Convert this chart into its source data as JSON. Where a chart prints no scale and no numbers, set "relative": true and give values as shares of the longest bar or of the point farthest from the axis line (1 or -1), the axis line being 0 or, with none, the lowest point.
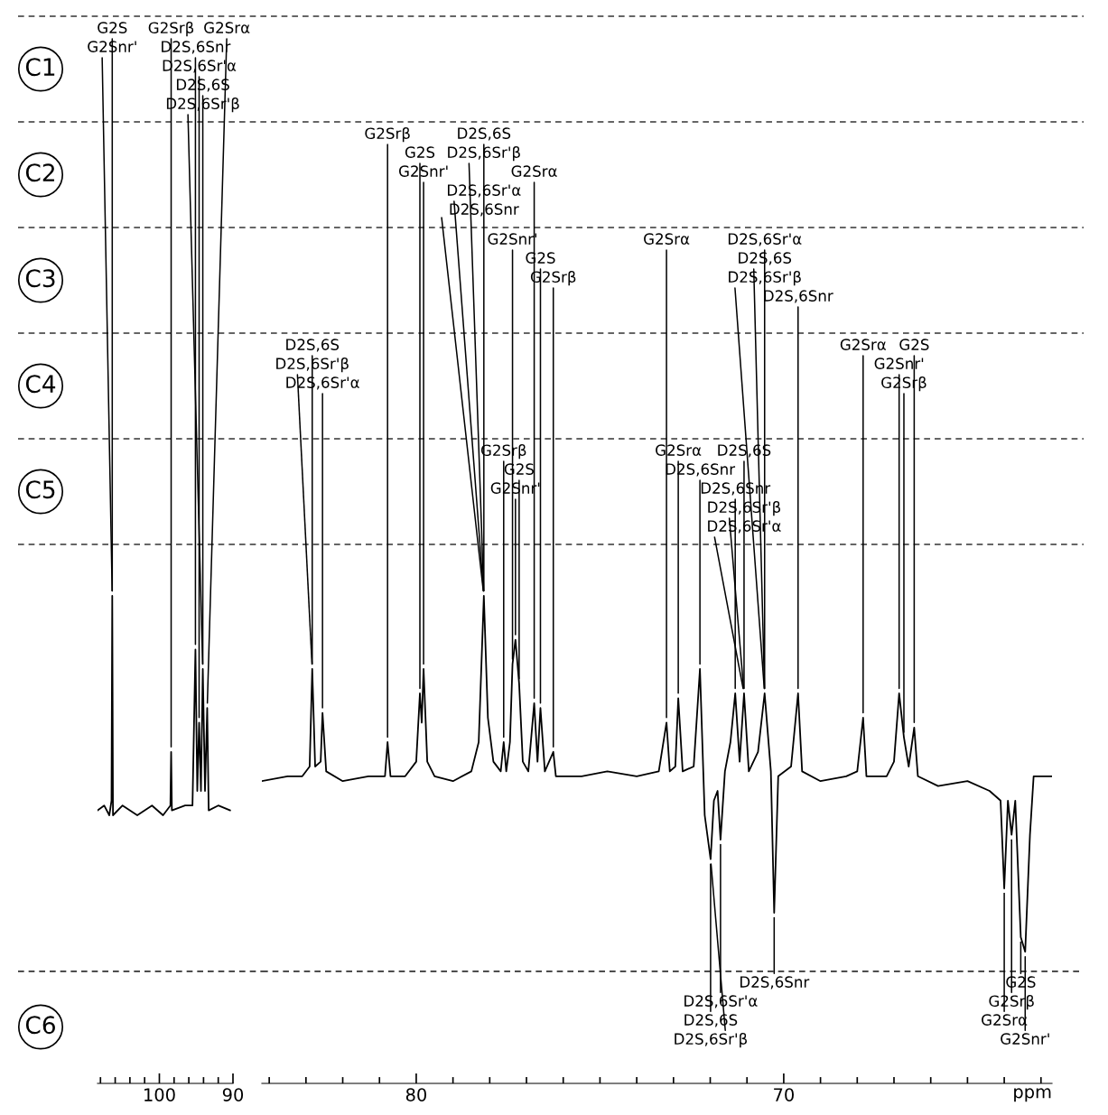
{
  "chart_data": [
    {
      "type": "line",
      "relative": true,
      "color": "#000000",
      "x": [
        108.4,
        107.5,
        106.8,
        106.5,
        106.4,
        106.3,
        105.0,
        103.0,
        101.0,
        99.5,
        98.5,
        98.4,
        98.3,
        96.5,
        95.5,
        95.1,
        94.85,
        94.6,
        94.35,
        94.1,
        93.8,
        93.5,
        93.3,
        92.0,
        90.4
      ],
      "values": [
        0.56,
        0.57,
        0.55,
        0.58,
        1.0,
        0.55,
        0.57,
        0.55,
        0.57,
        0.55,
        0.57,
        0.68,
        0.56,
        0.57,
        0.57,
        0.89,
        0.6,
        0.74,
        0.6,
        0.85,
        0.6,
        0.77,
        0.56,
        0.57,
        0.56
      ],
      "xlim": [
        108.4,
        90
      ],
      "ref_lines": [
        {
          "axis": "y",
          "value": 0.23,
          "line_style": "dashed",
          "color": "#333333"
        }
      ],
      "xticks": [
        {
          "value": 108,
          "label": null
        },
        {
          "value": 106,
          "label": null
        },
        {
          "value": 104,
          "label": null
        },
        {
          "value": 102,
          "label": null
        },
        100,
        {
          "value": 98,
          "label": null
        },
        {
          "value": 96,
          "label": null
        },
        {
          "value": 94,
          "label": null
        },
        {
          "value": 92,
          "label": null
        },
        90
      ],
      "annotations": [
        "C1",
        {
          "text": "G2S",
          "x": 106.4,
          "y": 1.0
        },
        {
          "text": "G2Snr'",
          "x": 106.4,
          "y": 1.0
        },
        {
          "text": "G2Srβ",
          "x": 98.4,
          "y": 0.68
        },
        {
          "text": "D2S,6Snr",
          "x": 95.1,
          "y": 0.89
        },
        {
          "text": "D2S,6Sr'α",
          "x": 94.6,
          "y": 0.74
        },
        {
          "text": "D2S,6S",
          "x": 94.1,
          "y": 0.85
        },
        {
          "text": "D2S,6Sr'β",
          "x": 94.1,
          "y": 0.85
        },
        {
          "text": "G2Srα",
          "x": 93.5,
          "y": 0.77
        }
      ]
    },
    {
      "type": "line",
      "relative": true,
      "color": "#000000",
      "xlabel": "ppm",
      "x": [
        84.2,
        83.5,
        83.1,
        82.9,
        82.83,
        82.75,
        82.6,
        82.55,
        82.45,
        82.0,
        81.3,
        80.85,
        80.78,
        80.7,
        80.3,
        80.0,
        79.9,
        79.85,
        79.8,
        79.7,
        79.5,
        79.0,
        78.5,
        78.3,
        78.16,
        78.05,
        77.9,
        77.7,
        77.62,
        77.55,
        77.45,
        77.38,
        77.3,
        77.2,
        77.1,
        76.95,
        76.79,
        76.7,
        76.62,
        76.5,
        76.27,
        76.2,
        75.5,
        74.8,
        74.0,
        73.4,
        73.19,
        73.1,
        72.95,
        72.87,
        72.75,
        72.45,
        72.28,
        72.15,
        71.99,
        71.9,
        71.8,
        71.72,
        71.6,
        71.45,
        71.32,
        71.2,
        71.08,
        70.95,
        70.7,
        70.52,
        70.35,
        70.26,
        70.15,
        69.8,
        69.61,
        69.5,
        69.0,
        68.3,
        68.0,
        67.84,
        67.75,
        67.2,
        67.0,
        66.86,
        66.73,
        66.6,
        66.45,
        66.35,
        65.8,
        65.0,
        64.4,
        64.1,
        64.0,
        63.9,
        63.8,
        63.7,
        63.55,
        63.43,
        63.3,
        63.2,
        62.9,
        62.72
      ],
      "values": [
        0.62,
        0.63,
        0.63,
        0.65,
        0.85,
        0.65,
        0.66,
        0.76,
        0.64,
        0.62,
        0.63,
        0.63,
        0.7,
        0.63,
        0.63,
        0.66,
        0.8,
        0.74,
        0.85,
        0.66,
        0.63,
        0.62,
        0.64,
        0.7,
        1.0,
        0.75,
        0.66,
        0.64,
        0.7,
        0.64,
        0.7,
        0.86,
        0.91,
        0.82,
        0.66,
        0.64,
        0.78,
        0.66,
        0.77,
        0.64,
        0.68,
        0.63,
        0.63,
        0.64,
        0.63,
        0.64,
        0.74,
        0.64,
        0.65,
        0.79,
        0.64,
        0.65,
        0.85,
        0.55,
        0.46,
        0.58,
        0.6,
        0.5,
        0.64,
        0.7,
        0.8,
        0.66,
        0.8,
        0.64,
        0.68,
        0.8,
        0.64,
        0.35,
        0.63,
        0.65,
        0.8,
        0.64,
        0.62,
        0.63,
        0.64,
        0.75,
        0.63,
        0.63,
        0.66,
        0.8,
        0.71,
        0.65,
        0.73,
        0.63,
        0.61,
        0.62,
        0.6,
        0.58,
        0.4,
        0.58,
        0.51,
        0.58,
        0.3,
        0.27,
        0.51,
        0.63,
        0.63,
        0.63
      ],
      "xlim": [
        84.2,
        62.7
      ],
      "ref_lines": [
        {
          "axis": "y",
          "value": 0.23,
          "line_style": "dashed",
          "color": "#333333"
        }
      ],
      "xticks": [
        {
          "value": 84,
          "label": null
        },
        {
          "value": 83,
          "label": null
        },
        {
          "value": 82,
          "label": null
        },
        {
          "value": 81,
          "label": null
        },
        80,
        {
          "value": 79,
          "label": null
        },
        {
          "value": 78,
          "label": null
        },
        {
          "value": 77,
          "label": null
        },
        {
          "value": 76,
          "label": null
        },
        {
          "value": 75,
          "label": null
        },
        {
          "value": 74,
          "label": null
        },
        {
          "value": 73,
          "label": null
        },
        {
          "value": 72,
          "label": null
        },
        {
          "value": 71,
          "label": null
        },
        70,
        {
          "value": 69,
          "label": null
        },
        {
          "value": 68,
          "label": null
        },
        {
          "value": 67,
          "label": null
        },
        {
          "value": 66,
          "label": null
        },
        {
          "value": 65,
          "label": null
        },
        {
          "value": 64,
          "label": null
        },
        {
          "value": 63,
          "label": null
        }
      ],
      "annotations": [
        "C2",
        {
          "text": "G2Srβ",
          "x": 80.78,
          "y": 0.7
        },
        {
          "text": "G2S",
          "x": 79.9,
          "y": 0.8
        },
        {
          "text": "G2Snr'",
          "x": 79.8,
          "y": 0.85
        },
        {
          "text": "D2S,6S",
          "x": 78.16,
          "y": 1.0
        },
        {
          "text": "D2S,6Sr'β",
          "x": 78.16,
          "y": 1.0
        },
        {
          "text": "D2S,6Sr'α",
          "x": 78.16,
          "y": 1.0
        },
        {
          "text": "D2S,6Snr",
          "x": 78.16,
          "y": 1.0
        },
        {
          "text": "G2Srα",
          "x": 76.79,
          "y": 0.78
        },
        "C3",
        {
          "text": "G2Snr'",
          "x": 77.38,
          "y": 0.86
        },
        {
          "text": "G2S",
          "x": 76.62,
          "y": 0.77
        },
        {
          "text": "G2Srβ",
          "x": 76.27,
          "y": 0.68
        },
        {
          "text": "G2Srα",
          "x": 73.19,
          "y": 0.74
        },
        {
          "text": "D2S,6Sr'α",
          "x": 70.52,
          "y": 0.8
        },
        {
          "text": "D2S,6S",
          "x": 70.52,
          "y": 0.8
        },
        {
          "text": "D2S,6Sr'β",
          "x": 70.52,
          "y": 0.8
        },
        {
          "text": "D2S,6Snr",
          "x": 69.61,
          "y": 0.8
        },
        "C4",
        {
          "text": "D2S,6S",
          "x": 82.83,
          "y": 0.85
        },
        {
          "text": "D2S,6Sr'β",
          "x": 82.83,
          "y": 0.85
        },
        {
          "text": "D2S,6Sr'α",
          "x": 82.55,
          "y": 0.76
        },
        {
          "text": "G2Srα",
          "x": 67.84,
          "y": 0.75
        },
        {
          "text": "G2Snr'",
          "x": 66.86,
          "y": 0.8
        },
        {
          "text": "G2Srβ",
          "x": 66.73,
          "y": 0.71
        },
        {
          "text": "G2S",
          "x": 66.45,
          "y": 0.73
        },
        "C5",
        {
          "text": "G2Srβ",
          "x": 77.62,
          "y": 0.7
        },
        {
          "text": "G2S",
          "x": 77.2,
          "y": 0.82
        },
        {
          "text": "G2Snr'",
          "x": 77.3,
          "y": 0.91
        },
        {
          "text": "G2Srα",
          "x": 72.87,
          "y": 0.79
        },
        {
          "text": "D2S,6Snr",
          "x": 72.28,
          "y": 0.85
        },
        {
          "text": "D2S,6Snr",
          "x": 71.32,
          "y": 0.8
        },
        {
          "text": "D2S,6S",
          "x": 71.08,
          "y": 0.8
        },
        {
          "text": "D2S,6Sr'β",
          "x": 71.08,
          "y": 0.8
        },
        {
          "text": "D2S,6Sr'α",
          "x": 71.08,
          "y": 0.8
        },
        "C6",
        {
          "text": "D2S,6Snr",
          "x": 70.26,
          "y": 0.35
        },
        {
          "text": "D2S,6Sr'α",
          "x": 71.72,
          "y": 0.5
        },
        {
          "text": "D2S,6S",
          "x": 71.99,
          "y": 0.46
        },
        {
          "text": "D2S,6Sr'β",
          "x": 71.99,
          "y": 0.46
        },
        {
          "text": "G2S",
          "x": 63.55,
          "y": 0.3
        },
        {
          "text": "G2Srβ",
          "x": 63.8,
          "y": 0.51
        },
        {
          "text": "G2Srα",
          "x": 64.0,
          "y": 0.4
        },
        {
          "text": "G2Snr'",
          "x": 63.43,
          "y": 0.27
        }
      ]
    }
  ]
}
